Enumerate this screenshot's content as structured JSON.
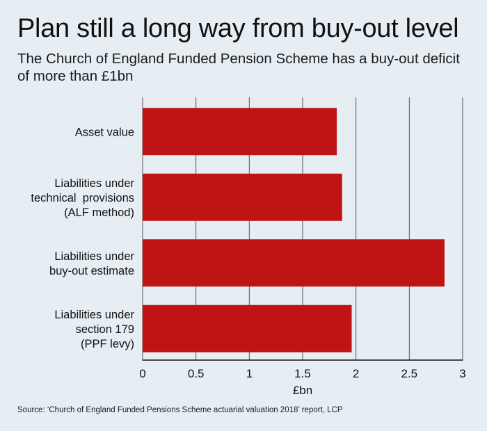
{
  "title": "Plan still a long way from buy-out level",
  "subtitle": "The Church of England Funded Pension Scheme has a buy-out deficit of more than £1bn",
  "source": "Source: ‘Church of England Funded Pensions Scheme actuarial valuation 2018’ report, LCP",
  "chart_data": {
    "type": "bar",
    "orientation": "horizontal",
    "categories": [
      [
        "Asset value"
      ],
      [
        "Liabilities under",
        "technical  provisions",
        "(ALF method)"
      ],
      [
        "Liabilities under",
        "buy-out estimate"
      ],
      [
        "Liabilities under",
        "section 179",
        "(PPF levy)"
      ]
    ],
    "values": [
      1.82,
      1.87,
      2.83,
      1.96
    ],
    "xlabel": "£bn",
    "ylabel": "",
    "xlim": [
      0,
      3
    ],
    "xticks": [
      "0",
      "0.5",
      "1",
      "1.5",
      "2",
      "2.5",
      "3"
    ],
    "grid": true,
    "bar_color": "#bf1414",
    "grid_color": "#555555"
  }
}
